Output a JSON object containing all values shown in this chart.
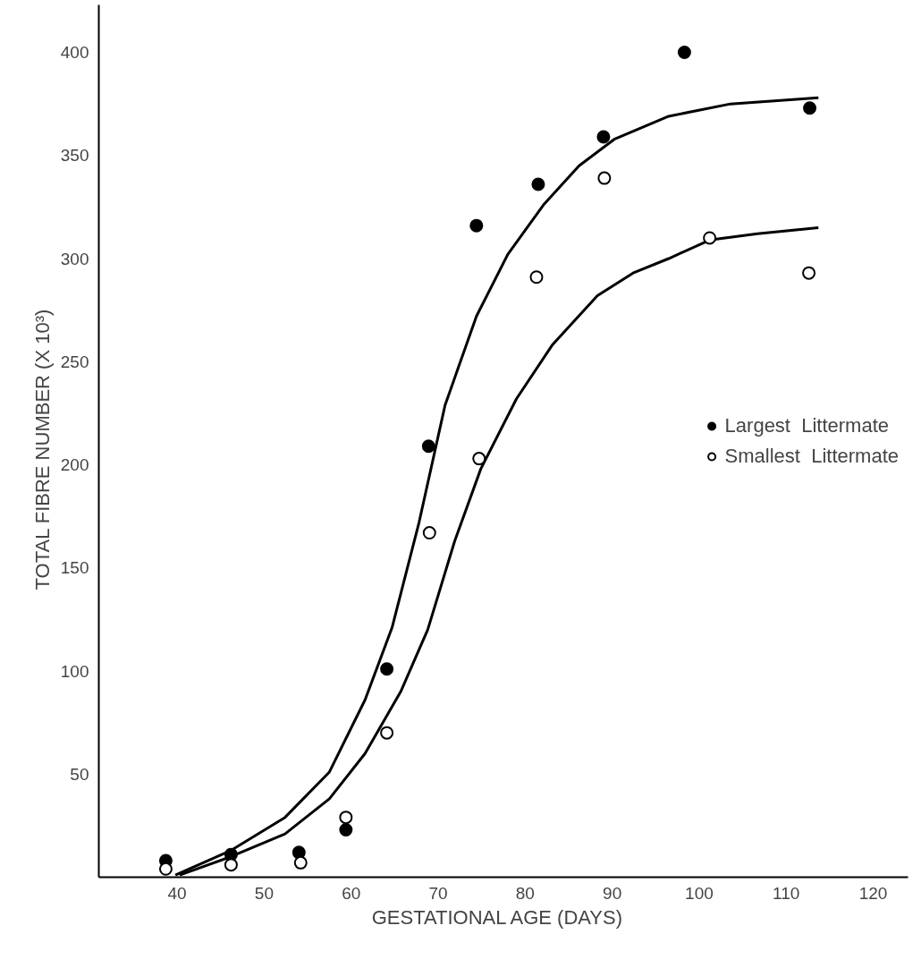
{
  "chart_data": {
    "type": "scatter",
    "xlabel": "GESTATIONAL  AGE  (DAYS)",
    "ylabel": "TOTAL  FIBRE  NUMBER  (X 10³)",
    "xlim": [
      31,
      124
    ],
    "ylim": [
      0,
      423
    ],
    "xticks": [
      40,
      50,
      60,
      70,
      80,
      90,
      100,
      110,
      120
    ],
    "yticks": [
      50,
      100,
      150,
      200,
      250,
      300,
      350,
      400
    ],
    "grid": false,
    "legend": "right",
    "series": [
      {
        "name": "Largest  Littermate",
        "color": "#000000",
        "marker": "circle",
        "x": [
          38.7,
          46.2,
          54.0,
          59.4,
          64.1,
          68.9,
          74.4,
          81.5,
          89.0,
          98.3,
          112.7
        ],
        "values": [
          8,
          11,
          12,
          23,
          101,
          209,
          316,
          336,
          359,
          400,
          373
        ]
      },
      {
        "name": "Smallest  Littermate",
        "color": "#000000",
        "marker": "circle_open",
        "x": [
          38.7,
          46.2,
          54.2,
          59.4,
          64.1,
          69.0,
          74.7,
          81.3,
          89.1,
          101.2,
          112.6
        ],
        "values": [
          4,
          6,
          7,
          29,
          70,
          167,
          203,
          291,
          339,
          310,
          293
        ]
      },
      {
        "type": "line",
        "color": "#000000",
        "line_style": "solid",
        "x": [
          39.8,
          46.2,
          52.4,
          57.5,
          61.6,
          64.7,
          67.8,
          70.8,
          74.4,
          78.0,
          82.1,
          86.2,
          90.3,
          96.5,
          103.6,
          113.7
        ],
        "values": [
          1,
          13,
          29,
          51,
          86,
          121,
          172,
          229,
          272,
          302,
          326,
          345,
          358,
          369,
          375,
          378
        ]
      },
      {
        "type": "line",
        "color": "#000000",
        "line_style": "solid",
        "x": [
          40.3,
          46.2,
          52.4,
          57.5,
          61.6,
          65.7,
          68.8,
          71.9,
          74.9,
          79.0,
          83.1,
          88.3,
          92.4,
          96.5,
          101.2,
          106.7,
          113.7
        ],
        "values": [
          1,
          10,
          21,
          38,
          60,
          90,
          120,
          163,
          198,
          232,
          258,
          282,
          293,
          300,
          309,
          312,
          315
        ]
      }
    ]
  }
}
